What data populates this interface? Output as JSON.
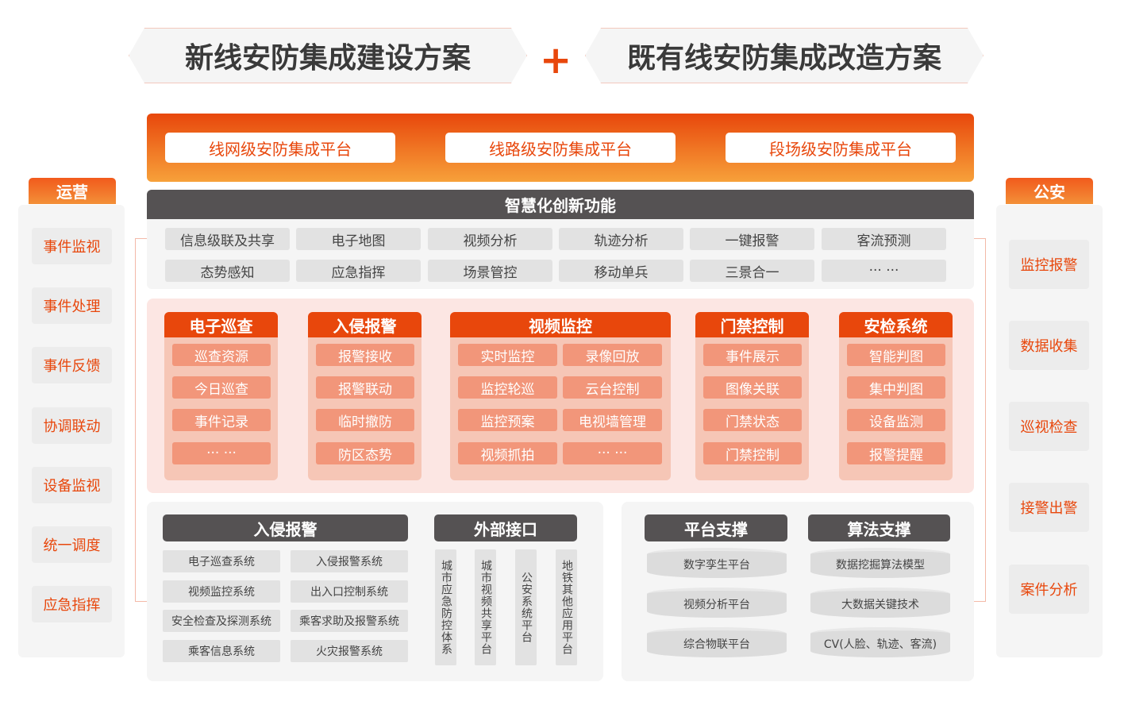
{
  "titles": {
    "left": "新线安防集成建设方案",
    "plus": "+",
    "right": "既有线安防集成改造方案"
  },
  "platforms": [
    "线网级安防集成平台",
    "线路级安防集成平台",
    "段场级安防集成平台"
  ],
  "smart": {
    "title": "智慧化创新功能",
    "items": [
      "信息级联及共享",
      "电子地图",
      "视频分析",
      "轨迹分析",
      "一键报警",
      "客流预测",
      "态势感知",
      "应急指挥",
      "场景管控",
      "移动单兵",
      "三景合一",
      "··· ···"
    ]
  },
  "modules": [
    {
      "title": "电子巡查",
      "items": [
        "巡查资源",
        "今日巡查",
        "事件记录",
        "··· ···"
      ]
    },
    {
      "title": "入侵报警",
      "items": [
        "报警接收",
        "报警联动",
        "临时撤防",
        "防区态势"
      ]
    },
    {
      "title": "视频监控",
      "items": [
        "实时监控",
        "录像回放",
        "监控轮巡",
        "云台控制",
        "监控预案",
        "电视墙管理",
        "视频抓拍",
        "··· ···"
      ]
    },
    {
      "title": "门禁控制",
      "items": [
        "事件展示",
        "图像关联",
        "门禁状态",
        "门禁控制"
      ]
    },
    {
      "title": "安检系统",
      "items": [
        "智能判图",
        "集中判图",
        "设备监测",
        "报警提醒"
      ]
    }
  ],
  "intrusion": {
    "title": "入侵报警",
    "items": [
      "电子巡查系统",
      "入侵报警系统",
      "视频监控系统",
      "出入口控制系统",
      "安全检查及探测系统",
      "乘客求助及报警系统",
      "乘客信息系统",
      "火灾报警系统"
    ]
  },
  "external": {
    "title": "外部接口",
    "items": [
      "城市应急防控体系",
      "城市视频共享平台",
      "公安系统平台",
      "地铁其他应用平台"
    ]
  },
  "platform_support": {
    "title": "平台支撑",
    "items": [
      "数字孪生平台",
      "视频分析平台",
      "综合物联平台"
    ]
  },
  "algo_support": {
    "title": "算法支撑",
    "items": [
      "数据挖掘算法模型",
      "大数据关键技术",
      "CV(人脸、轨迹、客流)"
    ]
  },
  "ops": {
    "title": "运营",
    "items": [
      "事件监视",
      "事件处理",
      "事件反馈",
      "协调联动",
      "设备监视",
      "统一调度",
      "应急指挥"
    ]
  },
  "police": {
    "title": "公安",
    "items": [
      "监控报警",
      "数据收集",
      "巡视检查",
      "接警出警",
      "案件分析"
    ]
  },
  "colors": {
    "accent": "#e8470c",
    "dark": "#555253",
    "cell": "#f2967a"
  }
}
